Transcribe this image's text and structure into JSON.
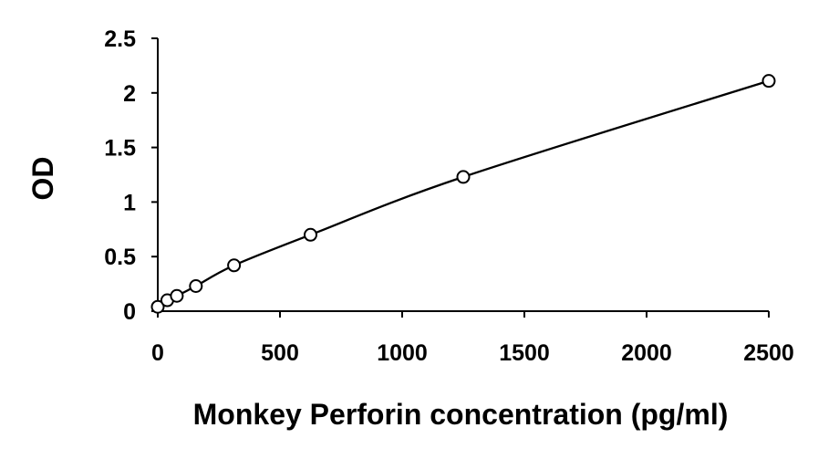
{
  "chart_data": {
    "type": "scatter",
    "xlabel": "Monkey Perforin concentration (pg/ml)",
    "ylabel": "OD",
    "xlim": [
      0,
      2500
    ],
    "ylim": [
      0,
      2.5
    ],
    "xticks": [
      "0",
      "500",
      "1000",
      "1500",
      "2000",
      "2500"
    ],
    "yticks": [
      "0",
      "0.5",
      "1",
      "1.5",
      "2",
      "2.5"
    ],
    "grid": false,
    "legend": "none",
    "trendline": true,
    "series": [
      {
        "x": [
          0,
          39,
          78,
          156,
          312,
          625,
          1250,
          2500
        ],
        "y": [
          0.04,
          0.1,
          0.14,
          0.23,
          0.42,
          0.7,
          1.23,
          2.11
        ]
      }
    ]
  },
  "colors": {
    "axis": "#000000",
    "line": "#000000",
    "marker_fill": "#ffffff",
    "marker_stroke": "#000000"
  }
}
